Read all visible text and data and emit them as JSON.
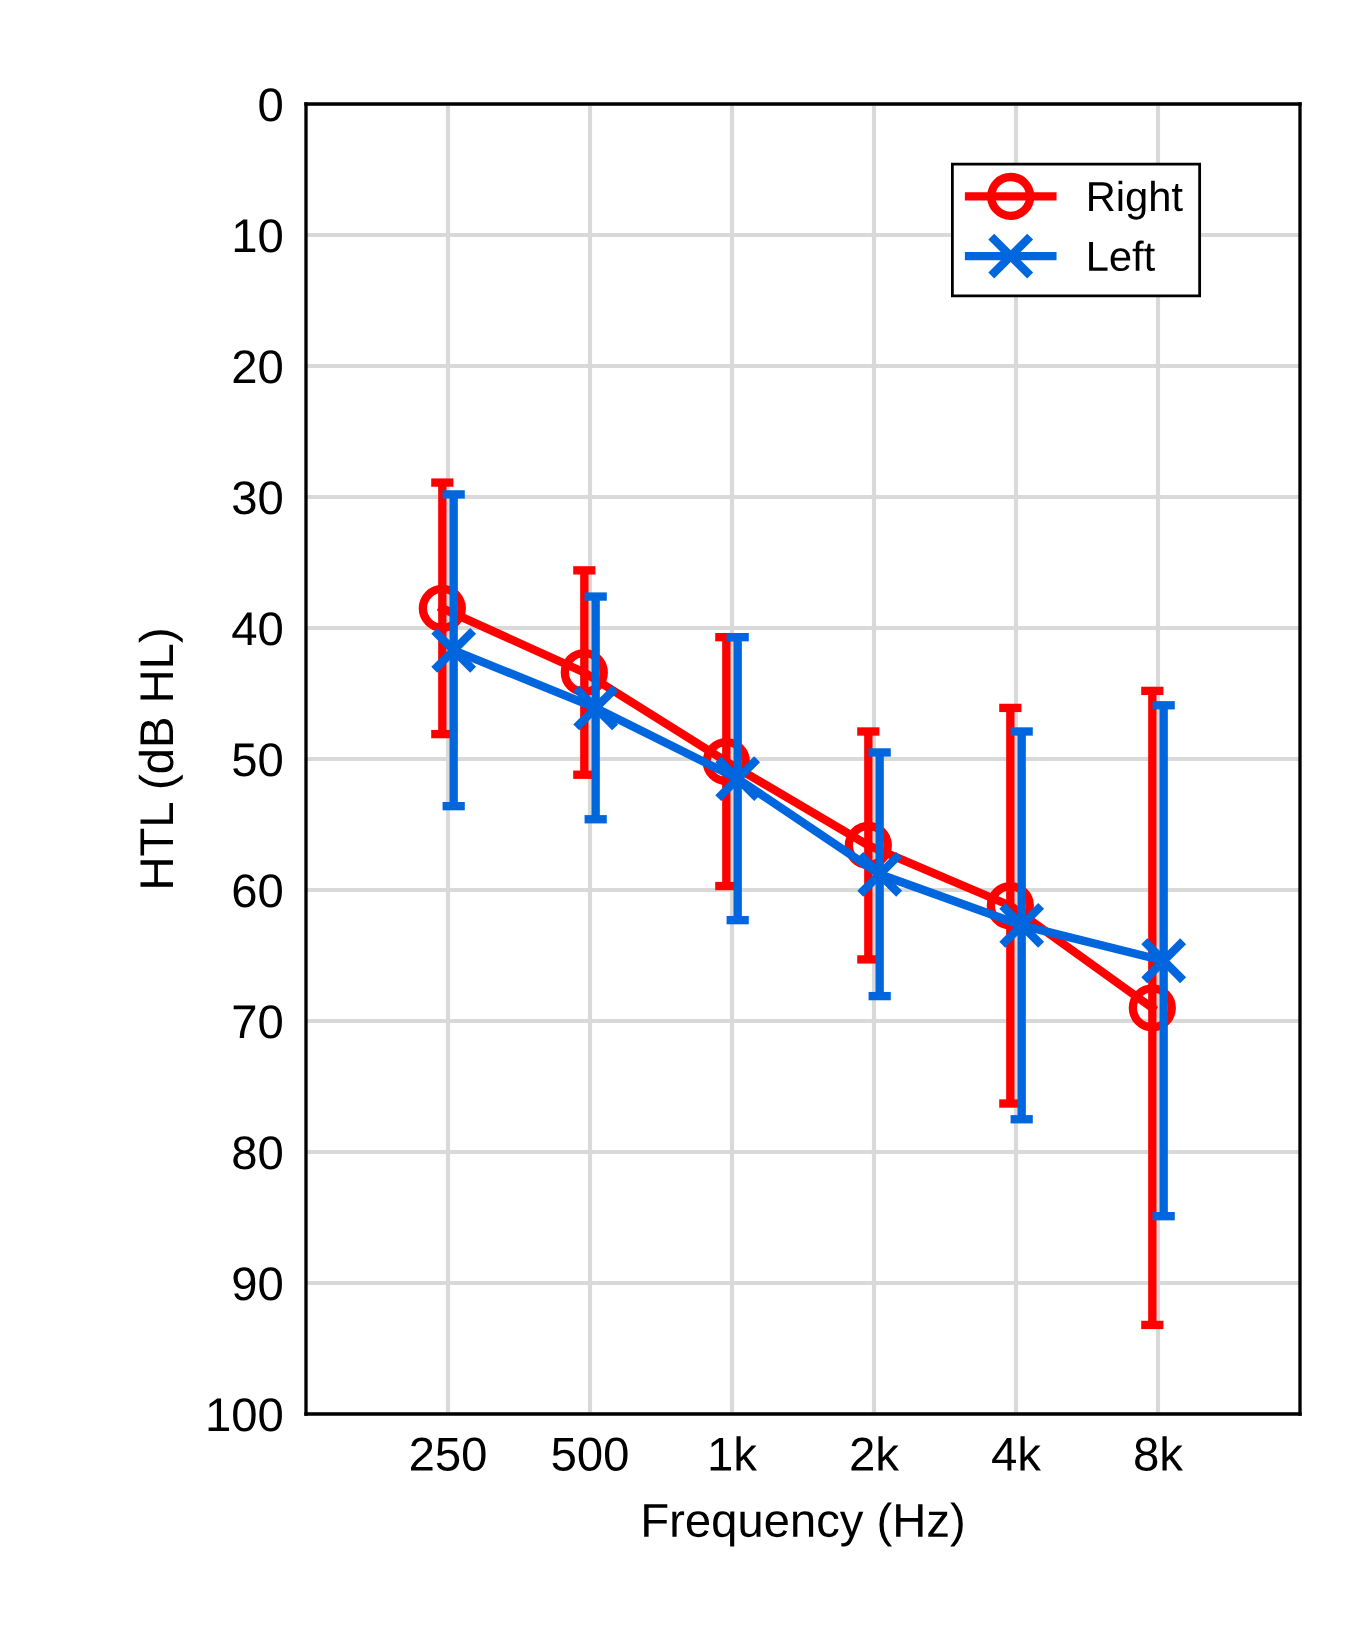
{
  "chart_data": {
    "type": "line",
    "xlabel": "Frequency (Hz)",
    "ylabel": "HTL (dB HL)",
    "categories": [
      "250",
      "500",
      "1k",
      "2k",
      "4k",
      "8k"
    ],
    "series": [
      {
        "name": "Right",
        "color": "#ff0000",
        "marker": "circle",
        "values": [
          38.5,
          43.4,
          50.2,
          56.6,
          61.2,
          69.0
        ],
        "errors": [
          9.6,
          7.8,
          9.5,
          8.7,
          15.1,
          24.2
        ]
      },
      {
        "name": "Left",
        "color": "#0066dd",
        "marker": "cross",
        "values": [
          41.7,
          46.1,
          51.5,
          58.8,
          62.7,
          65.4
        ],
        "errors": [
          11.9,
          8.5,
          10.8,
          9.3,
          14.8,
          19.5
        ]
      }
    ],
    "ylim": [
      100,
      0
    ],
    "yticks": [
      0,
      10,
      20,
      30,
      40,
      50,
      60,
      70,
      80,
      90,
      100
    ],
    "grid": true,
    "legend": "top right",
    "line_style": "solid"
  }
}
